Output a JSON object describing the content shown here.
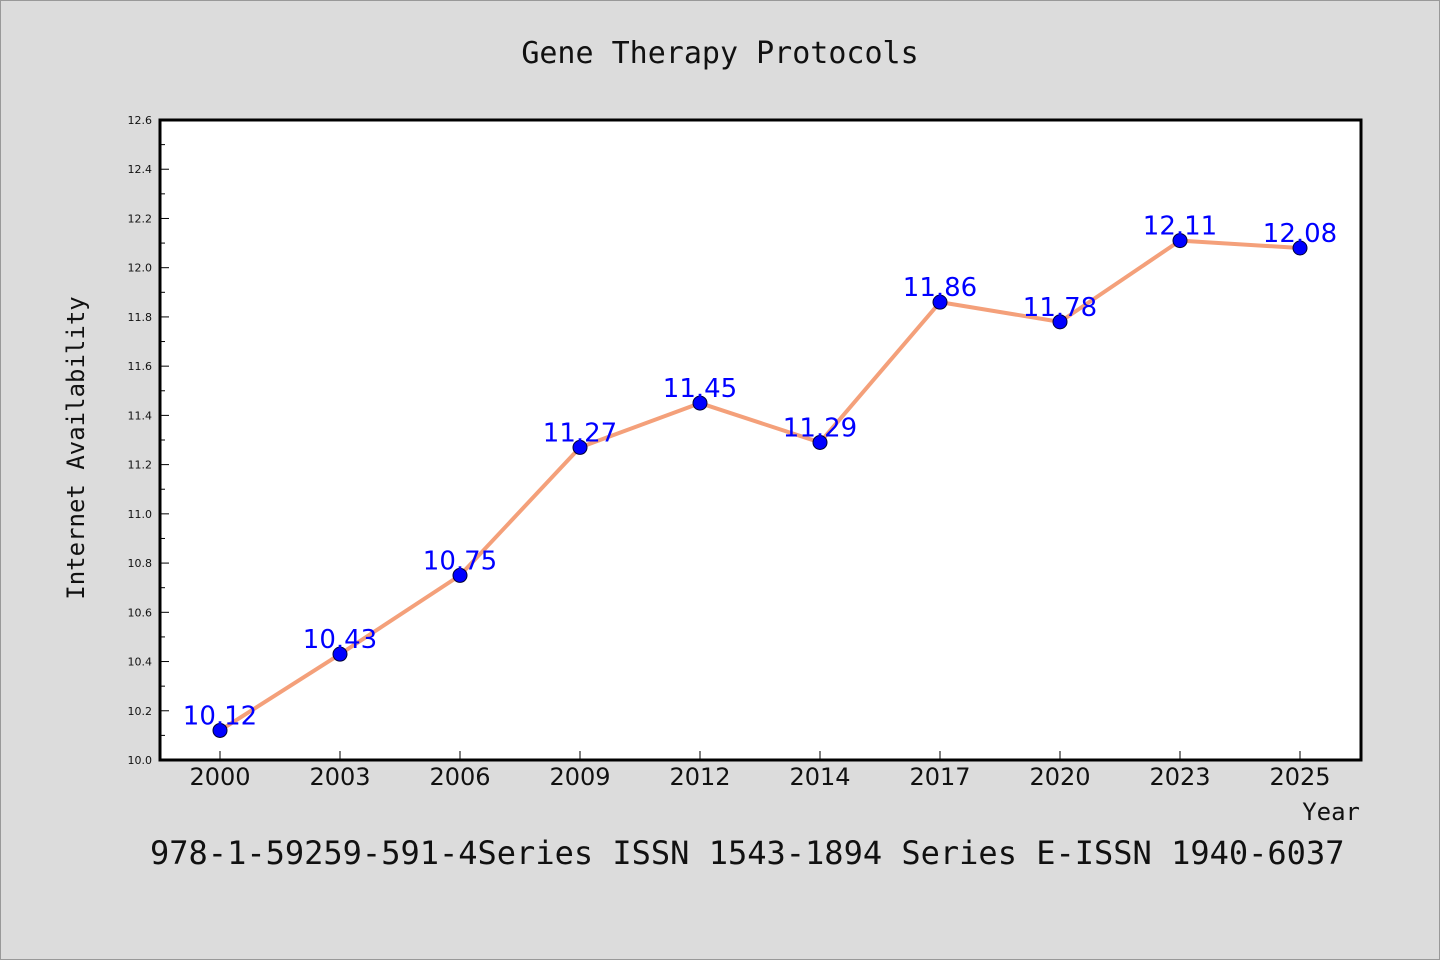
{
  "chart_data": {
    "type": "line",
    "title": "Gene Therapy Protocols",
    "xlabel": "Year",
    "ylabel": "Internet Availability",
    "categories": [
      "2000",
      "2003",
      "2006",
      "2009",
      "2012",
      "2014",
      "2017",
      "2020",
      "2023",
      "2025"
    ],
    "series": [
      {
        "values": [
          10.12,
          10.43,
          10.75,
          11.27,
          11.45,
          11.29,
          11.86,
          11.78,
          12.11,
          12.08
        ],
        "labels": [
          "10.12",
          "10.43",
          "10.75",
          "11.27",
          "11.45",
          "11.29",
          "11.86",
          "11.78",
          "12.11",
          "12.08"
        ],
        "line_color": "#f4a07a",
        "marker_color": "#0000ff"
      }
    ],
    "ylim": [
      10.0,
      12.6
    ],
    "yticks": [
      "10.0",
      "10.2",
      "10.4",
      "10.6",
      "10.8",
      "11.0",
      "11.2",
      "11.4",
      "11.6",
      "11.8",
      "12.0",
      "12.2",
      "12.4",
      "12.6"
    ],
    "grid": false,
    "legend": "none"
  },
  "footer": "978-1-59259-591-4Series ISSN 1543-1894 Series E-ISSN 1940-6037",
  "colors": {
    "background": "#dcdcdc",
    "plot_area": "#ffffff",
    "line": "#f4a07a",
    "marker": "#0000ff",
    "data_label": "#0000ff"
  }
}
